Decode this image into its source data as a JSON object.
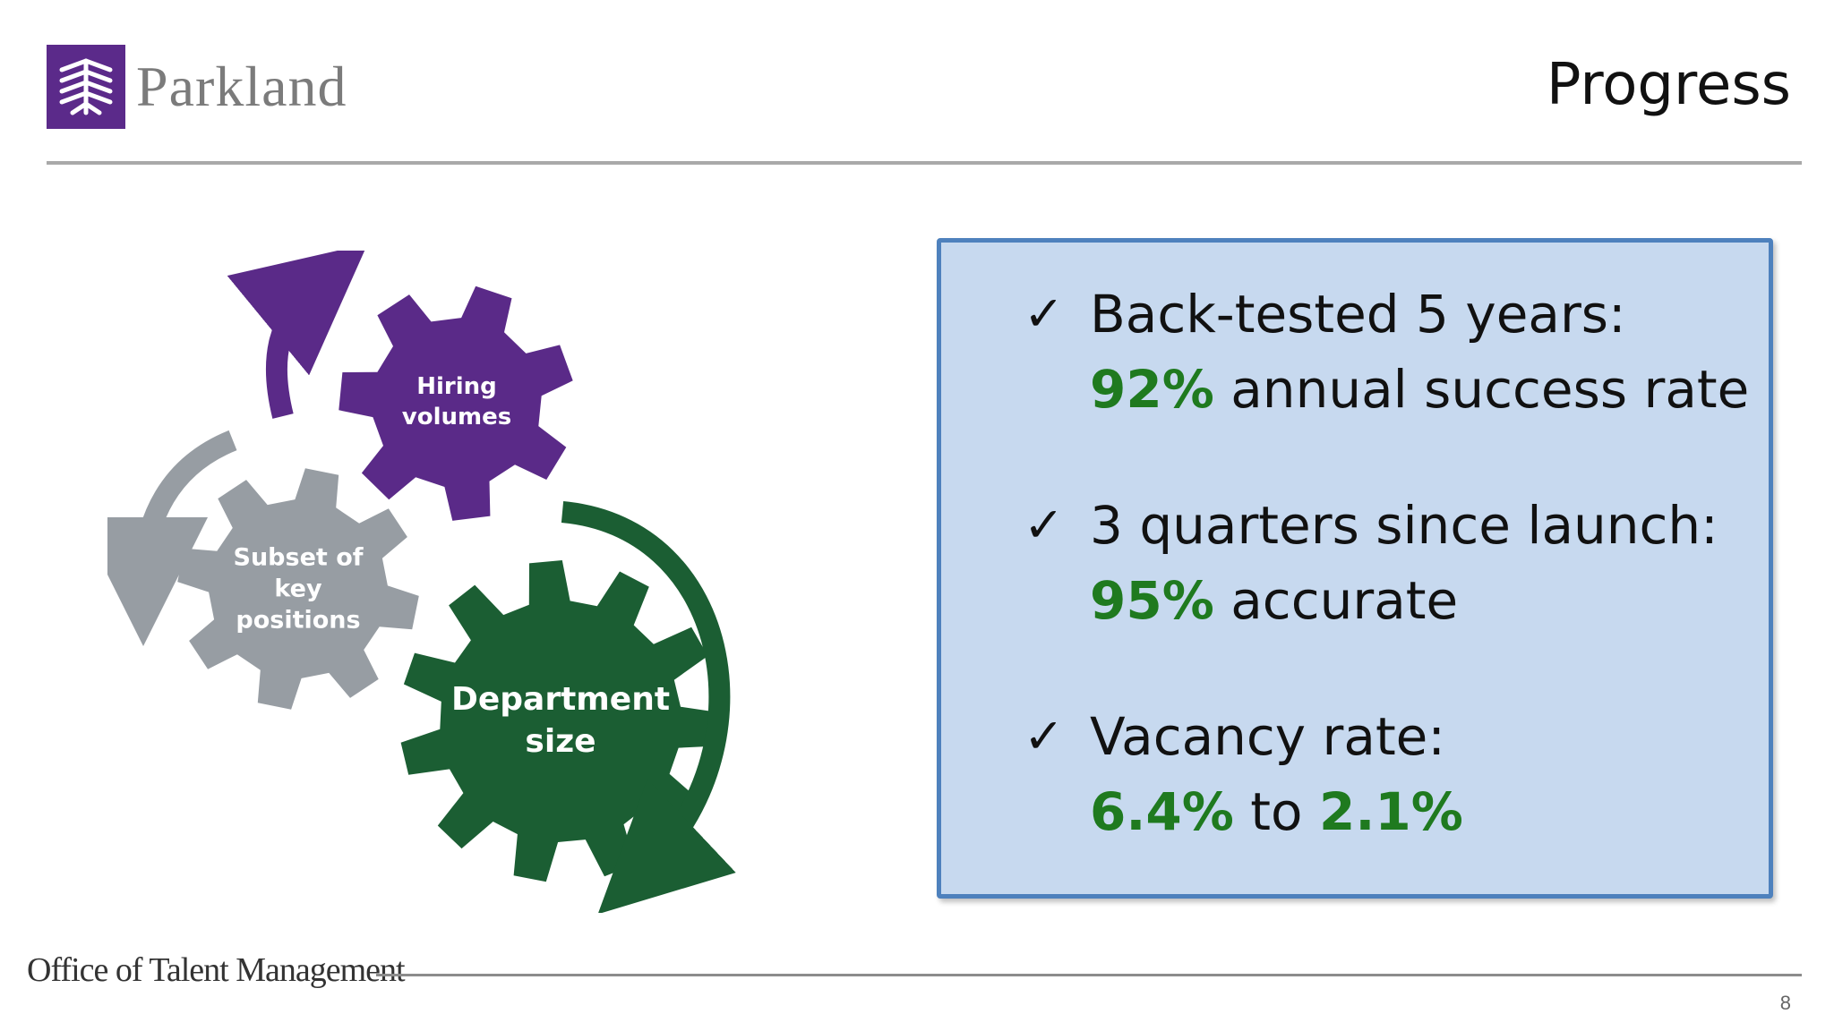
{
  "header": {
    "brand": "Parkland",
    "title": "Progress"
  },
  "gears": [
    {
      "label": "Hiring\nvolumes",
      "color": "#5a2a88"
    },
    {
      "label": "Subset of\nkey\npositions",
      "color": "#979da3"
    },
    {
      "label": "Department\nsize",
      "color": "#1b5e33"
    }
  ],
  "bullets": [
    {
      "line1": "Back-tested 5 years:",
      "hl1": "92%",
      "rest": " annual success rate"
    },
    {
      "line1": "3 quarters since launch:",
      "hl1": "95%",
      "rest": " accurate"
    },
    {
      "line1": "Vacancy rate:",
      "hl1": "6.4%",
      "mid": " to ",
      "hl2": "2.1%"
    }
  ],
  "footer": {
    "office": "Office of Talent Management",
    "page": "8"
  },
  "colors": {
    "accent_green": "#1f7a1f",
    "box_fill": "#c7d9ef",
    "box_border": "#4e81bd",
    "brand_purple": "#5b2a8a"
  }
}
